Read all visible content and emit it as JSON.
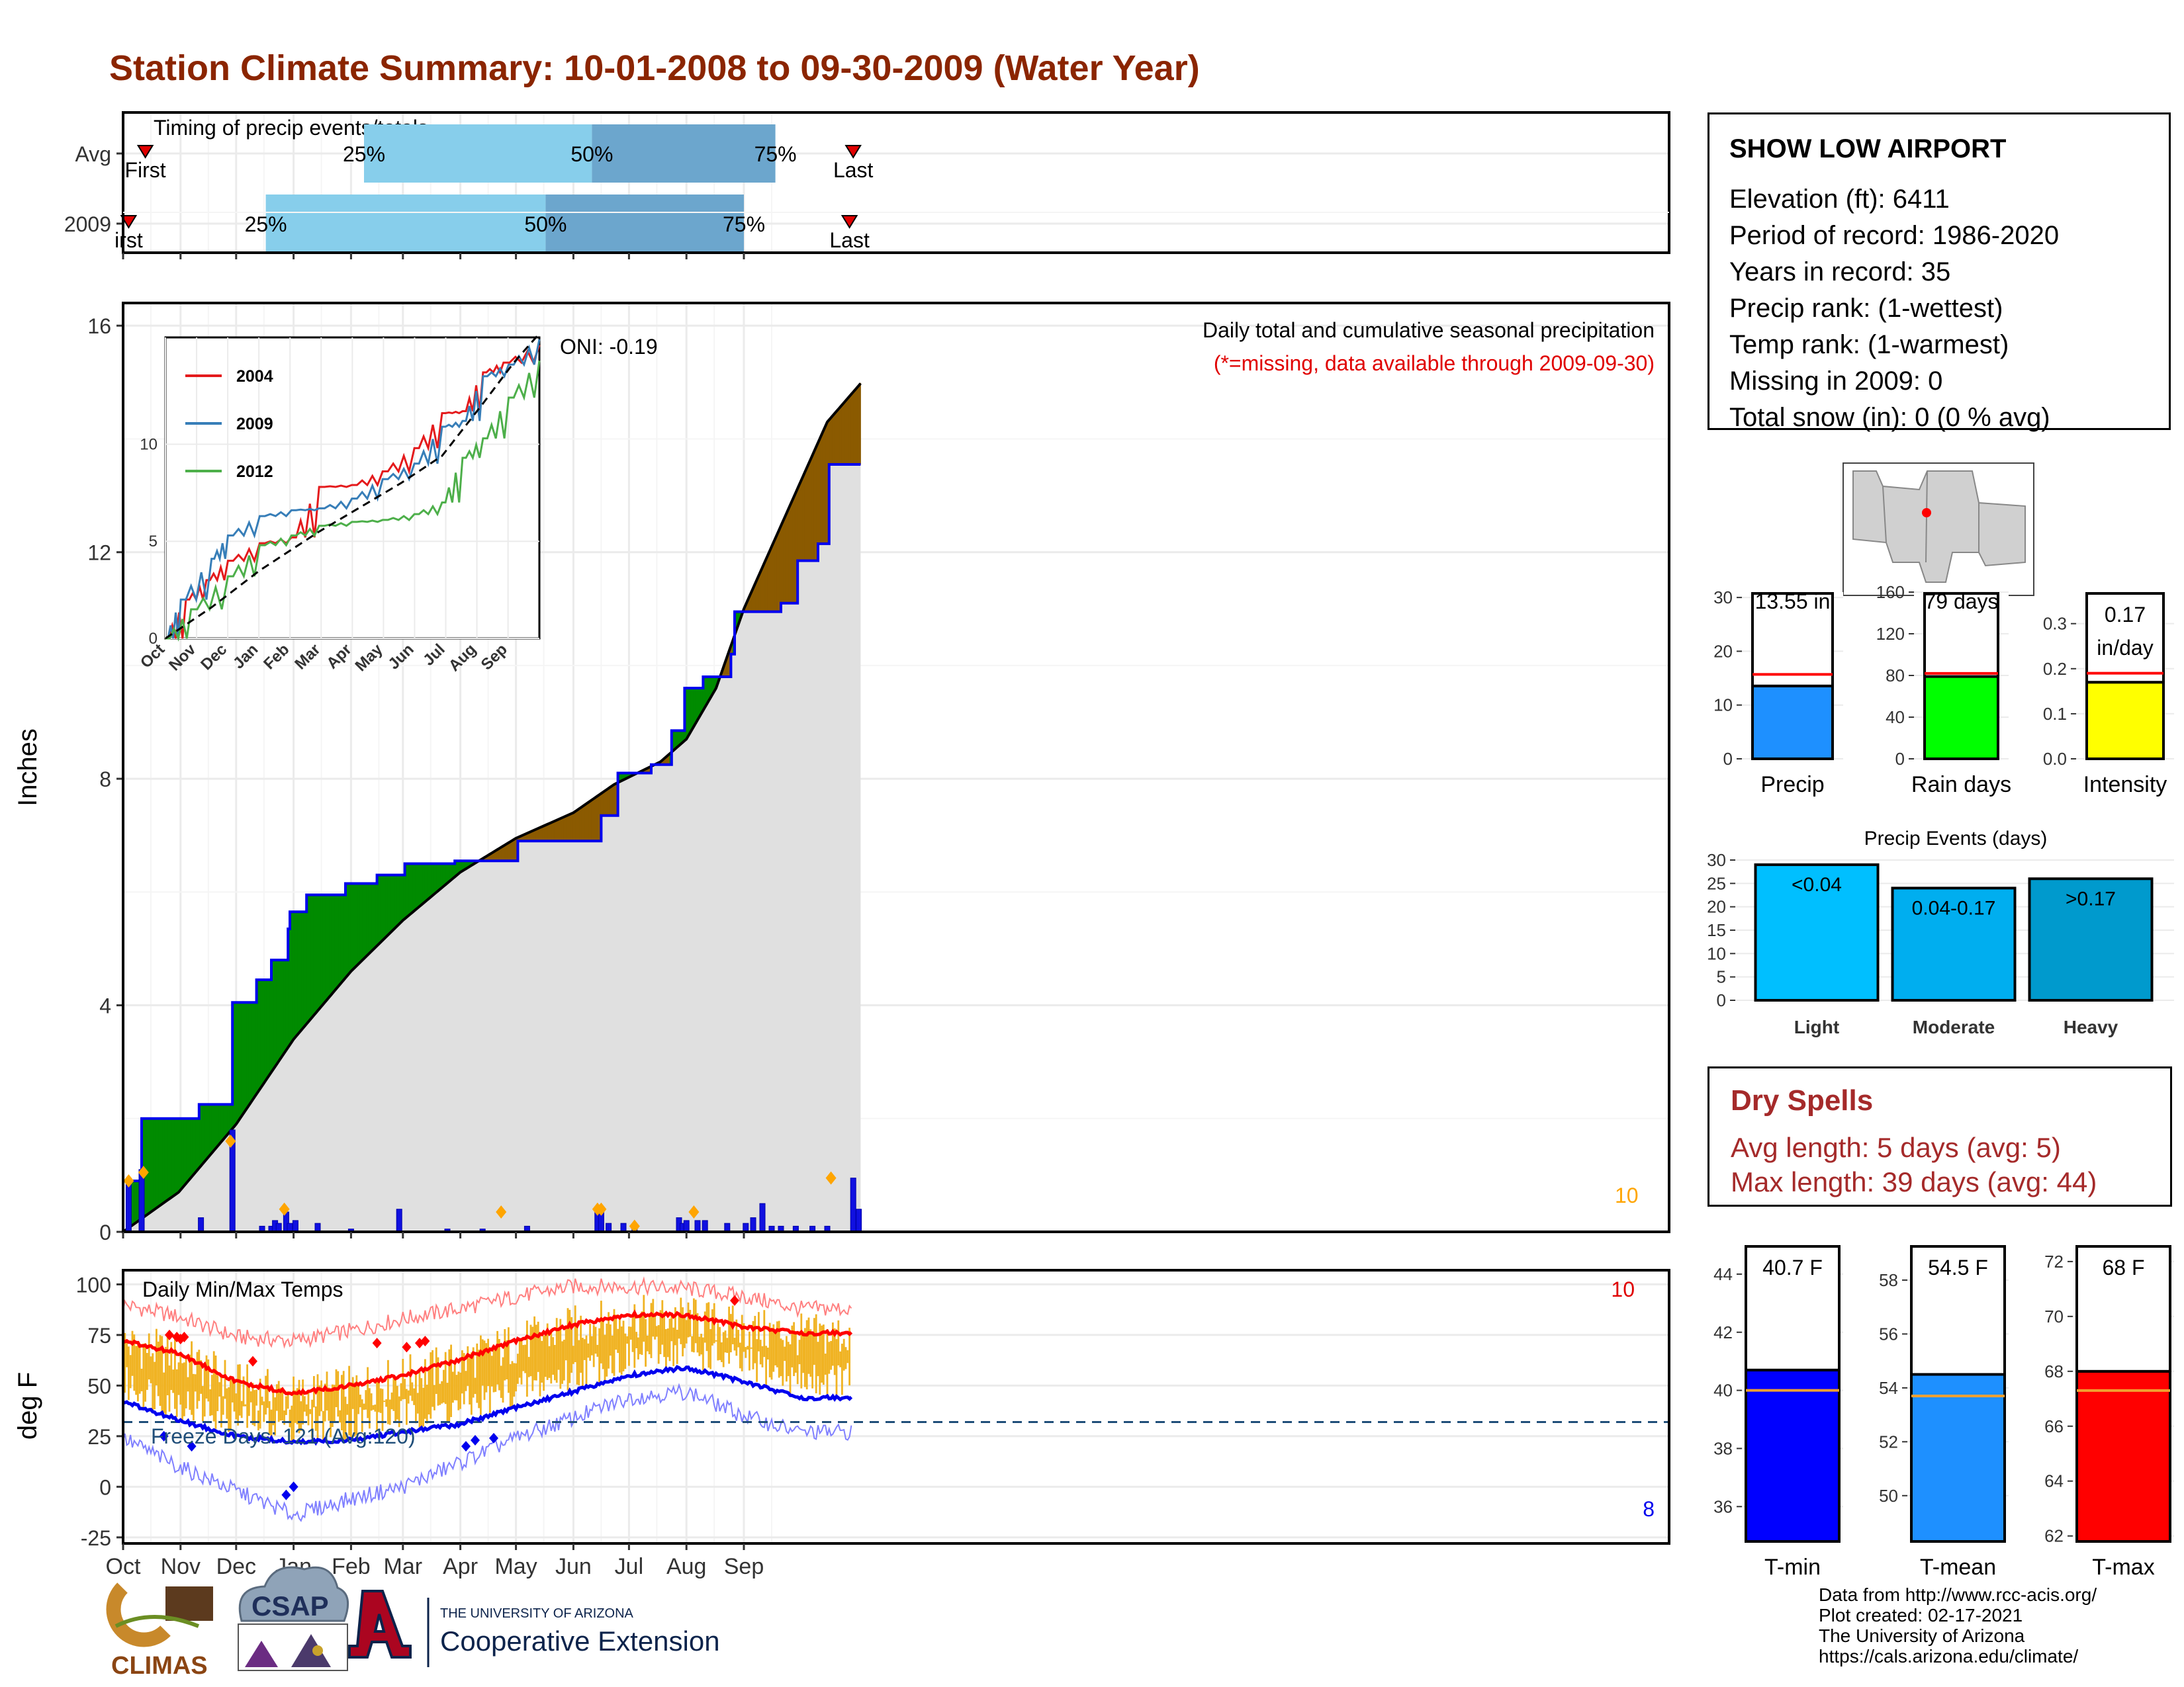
{
  "title": "Station Climate Summary: 10-01-2008 to 09-30-2009 (Water Year)",
  "station": {
    "name": "SHOW LOW AIRPORT",
    "rows": [
      "Elevation (ft): 6411",
      "Period of record: 1986-2020",
      "Years in record: 35",
      "Precip rank:  (1-wettest)",
      "Temp rank:  (1-warmest)",
      "Missing in 2009: 0",
      "Total snow (in): 0 (0 % avg)"
    ]
  },
  "dry_spells": {
    "title": "Dry Spells",
    "avg_line": "Avg length: 5 days (avg: 5)",
    "max_line": "Max length: 39 days (avg: 44)"
  },
  "credits": [
    "Data from http://www.rcc-acis.org/",
    "Plot created: 02-17-2021",
    "The University of Arizona",
    "https://cals.arizona.edu/climate/"
  ],
  "logos": {
    "climas": "CLIMAS",
    "csap": "CSAP",
    "ua_line1": "THE UNIVERSITY OF ARIZONA",
    "ua_line2": "Cooperative Extension"
  },
  "colors": {
    "title": "#8B2500",
    "light_blue": "#87CEEB",
    "mid_blue": "#6CA6CD",
    "green": "#008B00",
    "brown": "#8B5A00",
    "grey": "#E0E0E0",
    "avg_line": "#FF0000",
    "precip_bar": "#1E90FF",
    "rain_bar": "#00FF00",
    "intensity_bar": "#FFFF00",
    "tmin_bar": "#0000FF",
    "tmean_bar": "#1E90FF",
    "tmax_bar": "#FF0000",
    "temp_bars": "#F0B323"
  },
  "chart_data": [
    {
      "id": "timing",
      "type": "bar",
      "title": "Timing of precip events/totals",
      "categories": [
        "Avg",
        "2009"
      ],
      "month_ticks_day": [
        0,
        31,
        61,
        92,
        123,
        151,
        182,
        212,
        243,
        273,
        304,
        335
      ],
      "rows": [
        {
          "label": "Avg",
          "first_day": 12,
          "p25_day": 130,
          "p50_day": 253,
          "p75_day": 352,
          "last_day": 394,
          "first_label": "First",
          "last_label": "Last"
        },
        {
          "label": "2009",
          "first_day": 3,
          "p25_day": 77,
          "p50_day": 228,
          "p75_day": 335,
          "last_day": 392,
          "first_label": "irst",
          "last_label": "Last"
        }
      ],
      "pct_labels": [
        "25%",
        "50%",
        "75%"
      ]
    },
    {
      "id": "cumulative",
      "type": "area",
      "title": "Daily total and cumulative seasonal precipitation",
      "subtitle": "(*=missing, data available through 2009-09-30)",
      "annotation": "ONI: -0.19",
      "count_label": "10",
      "ylabel": "Inches",
      "ylim": [
        0,
        16.4
      ],
      "yticks": [
        0,
        4,
        8,
        12,
        16
      ],
      "cum_2009": [
        [
          0,
          0
        ],
        [
          3,
          0.9
        ],
        [
          9,
          0.9
        ],
        [
          10,
          2.0
        ],
        [
          40,
          2.0
        ],
        [
          41,
          2.25
        ],
        [
          58,
          2.25
        ],
        [
          59,
          4.05
        ],
        [
          71,
          4.05
        ],
        [
          72,
          4.45
        ],
        [
          79,
          4.45
        ],
        [
          80,
          4.8
        ],
        [
          87,
          4.8
        ],
        [
          89,
          5.35
        ],
        [
          90,
          5.65
        ],
        [
          98,
          5.65
        ],
        [
          99,
          5.95
        ],
        [
          117,
          5.95
        ],
        [
          120,
          6.15
        ],
        [
          135,
          6.15
        ],
        [
          137,
          6.3
        ],
        [
          151,
          6.3
        ],
        [
          152,
          6.5
        ],
        [
          178,
          6.5
        ],
        [
          179,
          6.55
        ],
        [
          212,
          6.55
        ],
        [
          213,
          6.9
        ],
        [
          257,
          6.9
        ],
        [
          258,
          7.35
        ],
        [
          263,
          7.35
        ],
        [
          267,
          8.1
        ],
        [
          284,
          8.1
        ],
        [
          285,
          8.25
        ],
        [
          295,
          8.25
        ],
        [
          296,
          8.85
        ],
        [
          302,
          8.85
        ],
        [
          303,
          9.6
        ],
        [
          312,
          9.6
        ],
        [
          313,
          9.8
        ],
        [
          327,
          9.8
        ],
        [
          328,
          10.2
        ],
        [
          330,
          10.95
        ],
        [
          340,
          10.95
        ],
        [
          355,
          11.1
        ],
        [
          362,
          11.1
        ],
        [
          364,
          11.85
        ],
        [
          373,
          11.85
        ],
        [
          375,
          12.15
        ],
        [
          378,
          12.15
        ],
        [
          381,
          13.55
        ],
        [
          398,
          13.55
        ]
      ],
      "cum_avg": [
        [
          0,
          0
        ],
        [
          30,
          0.7
        ],
        [
          61,
          1.9
        ],
        [
          92,
          3.4
        ],
        [
          123,
          4.6
        ],
        [
          151,
          5.5
        ],
        [
          182,
          6.35
        ],
        [
          212,
          6.95
        ],
        [
          243,
          7.4
        ],
        [
          265,
          7.9
        ],
        [
          290,
          8.3
        ],
        [
          304,
          8.7
        ],
        [
          320,
          9.6
        ],
        [
          335,
          11.0
        ],
        [
          350,
          12.1
        ],
        [
          365,
          13.2
        ],
        [
          380,
          14.3
        ],
        [
          398,
          14.98
        ]
      ],
      "daily": [
        [
          3,
          0.9
        ],
        [
          10,
          1.1
        ],
        [
          42,
          0.25
        ],
        [
          59,
          1.8
        ],
        [
          75,
          0.1
        ],
        [
          80,
          0.1
        ],
        [
          82,
          0.2
        ],
        [
          84,
          0.15
        ],
        [
          88,
          0.35
        ],
        [
          90,
          0.15
        ],
        [
          93,
          0.2
        ],
        [
          105,
          0.15
        ],
        [
          123,
          0.05
        ],
        [
          149,
          0.4
        ],
        [
          175,
          0.05
        ],
        [
          194,
          0.05
        ],
        [
          218,
          0.1
        ],
        [
          256,
          0.4
        ],
        [
          258,
          0.4
        ],
        [
          262,
          0.15
        ],
        [
          270,
          0.15
        ],
        [
          276,
          0.05
        ],
        [
          300,
          0.25
        ],
        [
          302,
          0.15
        ],
        [
          304,
          0.2
        ],
        [
          310,
          0.2
        ],
        [
          314,
          0.2
        ],
        [
          326,
          0.15
        ],
        [
          336,
          0.15
        ],
        [
          340,
          0.25
        ],
        [
          345,
          0.5
        ],
        [
          350,
          0.1
        ],
        [
          355,
          0.1
        ],
        [
          363,
          0.1
        ],
        [
          372,
          0.1
        ],
        [
          380,
          0.1
        ],
        [
          394,
          0.95
        ],
        [
          397,
          0.4
        ]
      ],
      "daily_markers": [
        [
          3,
          0.9
        ],
        [
          11,
          1.05
        ],
        [
          58,
          1.6
        ],
        [
          87,
          0.4
        ],
        [
          204,
          0.35
        ],
        [
          256,
          0.4
        ],
        [
          258,
          0.4
        ],
        [
          308,
          0.35
        ],
        [
          276,
          0.1
        ],
        [
          382,
          0.95
        ]
      ]
    },
    {
      "id": "inset",
      "type": "line",
      "yticks": [
        0,
        5,
        10
      ],
      "ylim": [
        0,
        15.5
      ],
      "xticks": [
        "Oct",
        "Nov",
        "Dec",
        "Jan",
        "Feb",
        "Mar",
        "Apr",
        "May",
        "Jun",
        "Jul",
        "Aug",
        "Sep"
      ],
      "series": [
        {
          "name": "2004",
          "color": "#E41A1C",
          "values": [
            [
              0,
              0
            ],
            [
              20,
              2.0
            ],
            [
              40,
              3.0
            ],
            [
              61,
              4.0
            ],
            [
              92,
              4.9
            ],
            [
              123,
              5.2
            ],
            [
              150,
              7.8
            ],
            [
              182,
              7.9
            ],
            [
              212,
              8.6
            ],
            [
              243,
              9.8
            ],
            [
              270,
              11.6
            ],
            [
              290,
              11.7
            ],
            [
              310,
              13.7
            ],
            [
              330,
              14.2
            ],
            [
              365,
              15.1
            ]
          ]
        },
        {
          "name": "2009",
          "color": "#377EB8",
          "values": [
            [
              0,
              0
            ],
            [
              15,
              2.0
            ],
            [
              45,
              4.1
            ],
            [
              61,
              5.3
            ],
            [
              92,
              6.3
            ],
            [
              123,
              6.6
            ],
            [
              150,
              6.7
            ],
            [
              182,
              7.2
            ],
            [
              212,
              8.2
            ],
            [
              243,
              9.0
            ],
            [
              270,
              10.9
            ],
            [
              290,
              11.2
            ],
            [
              310,
              13.5
            ],
            [
              335,
              14.1
            ],
            [
              365,
              15.4
            ]
          ]
        },
        {
          "name": "2012",
          "color": "#4DAF4A",
          "values": [
            [
              0,
              0
            ],
            [
              25,
              1.5
            ],
            [
              61,
              3.2
            ],
            [
              92,
              4.8
            ],
            [
              123,
              5.3
            ],
            [
              150,
              5.8
            ],
            [
              182,
              6.0
            ],
            [
              212,
              6.1
            ],
            [
              243,
              6.4
            ],
            [
              270,
              7.0
            ],
            [
              290,
              9.3
            ],
            [
              310,
              10.3
            ],
            [
              335,
              12.4
            ],
            [
              365,
              14.3
            ]
          ]
        }
      ],
      "avg_dashed": [
        [
          0,
          0
        ],
        [
          45,
          1.6
        ],
        [
          92,
          3.5
        ],
        [
          150,
          5.5
        ],
        [
          182,
          6.5
        ],
        [
          230,
          8.0
        ],
        [
          270,
          9.4
        ],
        [
          310,
          12.1
        ],
        [
          340,
          14.2
        ],
        [
          365,
          15.7
        ]
      ]
    },
    {
      "id": "temps",
      "type": "line",
      "title": "Daily Min/Max Temps",
      "freeze_label": "Freeze Days: 121 (Avg:120)",
      "ylabel": "deg F",
      "ylim": [
        -28,
        107
      ],
      "yticks": [
        -25,
        0,
        25,
        50,
        75,
        100
      ],
      "freeze_line": 32,
      "count_high": "10",
      "count_low": "8",
      "xticks": [
        "Oct",
        "Nov",
        "Dec",
        "Jan",
        "Feb",
        "Mar",
        "Apr",
        "May",
        "Jun",
        "Jul",
        "Aug",
        "Sep"
      ],
      "avg_max": [
        [
          0,
          72
        ],
        [
          30,
          66
        ],
        [
          61,
          52
        ],
        [
          92,
          46
        ],
        [
          123,
          50
        ],
        [
          151,
          55
        ],
        [
          182,
          63
        ],
        [
          212,
          72
        ],
        [
          243,
          80
        ],
        [
          273,
          85
        ],
        [
          304,
          85
        ],
        [
          335,
          79
        ],
        [
          365,
          76
        ]
      ],
      "avg_min": [
        [
          0,
          42
        ],
        [
          30,
          33
        ],
        [
          61,
          25
        ],
        [
          92,
          22
        ],
        [
          123,
          23
        ],
        [
          151,
          27
        ],
        [
          182,
          31
        ],
        [
          212,
          39
        ],
        [
          243,
          47
        ],
        [
          273,
          55
        ],
        [
          304,
          59
        ],
        [
          335,
          52
        ],
        [
          365,
          44
        ]
      ],
      "rec_max": [
        [
          0,
          90
        ],
        [
          30,
          84
        ],
        [
          61,
          74
        ],
        [
          92,
          72
        ],
        [
          123,
          77
        ],
        [
          151,
          83
        ],
        [
          182,
          88
        ],
        [
          212,
          94
        ],
        [
          243,
          99
        ],
        [
          273,
          99
        ],
        [
          304,
          98
        ],
        [
          335,
          94
        ],
        [
          365,
          88
        ]
      ],
      "rec_min": [
        [
          0,
          24
        ],
        [
          30,
          10
        ],
        [
          61,
          -2
        ],
        [
          92,
          -14
        ],
        [
          123,
          -6
        ],
        [
          151,
          0
        ],
        [
          182,
          12
        ],
        [
          212,
          24
        ],
        [
          243,
          34
        ],
        [
          273,
          44
        ],
        [
          304,
          47
        ],
        [
          335,
          35
        ],
        [
          365,
          27
        ]
      ],
      "max_records": [
        [
          25,
          75
        ],
        [
          29,
          74
        ],
        [
          31,
          73
        ],
        [
          33,
          74
        ],
        [
          70,
          62
        ],
        [
          137,
          71
        ],
        [
          153,
          69
        ],
        [
          160,
          71
        ],
        [
          163,
          72
        ],
        [
          330,
          92
        ]
      ],
      "min_records": [
        [
          22,
          25
        ],
        [
          37,
          20
        ],
        [
          88,
          -4
        ],
        [
          185,
          20
        ],
        [
          190,
          23
        ],
        [
          200,
          24
        ],
        [
          92,
          0
        ]
      ]
    },
    {
      "id": "precip_totals",
      "type": "bar",
      "categories": [
        "Precip",
        "Rain days",
        "Intensity"
      ],
      "values": [
        13.55,
        79,
        0.17
      ],
      "averages": [
        15.7,
        82,
        0.19
      ],
      "value_labels": [
        "13.55 in",
        "79 days",
        "0.17 in/day"
      ],
      "ylims": [
        [
          0,
          31
        ],
        [
          0,
          160
        ],
        [
          0,
          0.37
        ]
      ],
      "yticks": [
        [
          0,
          10,
          20,
          30
        ],
        [
          0,
          40,
          80,
          120,
          160
        ],
        [
          0.0,
          0.1,
          0.2,
          0.3
        ]
      ]
    },
    {
      "id": "precip_events",
      "type": "bar",
      "title": "Precip Events (days)",
      "categories": [
        "Light",
        "Moderate",
        "Heavy"
      ],
      "bar_labels": [
        "<0.04",
        "0.04-0.17",
        ">0.17"
      ],
      "values": [
        29,
        24,
        26
      ],
      "ylim": [
        0,
        30
      ],
      "yticks": [
        0,
        5,
        10,
        15,
        20,
        25,
        30
      ]
    },
    {
      "id": "temp_avgs",
      "type": "bar",
      "categories": [
        "T-min",
        "T-mean",
        "T-max"
      ],
      "values": [
        40.7,
        54.5,
        68
      ],
      "averages": [
        40.0,
        53.7,
        67.3
      ],
      "value_labels": [
        "40.7 F",
        "54.5 F",
        "68 F"
      ],
      "ylims": [
        [
          34.8,
          45.0
        ],
        [
          48.3,
          59.3
        ],
        [
          61.8,
          72.6
        ]
      ],
      "yticks": [
        [
          36,
          38,
          40,
          42,
          44
        ],
        [
          50,
          52,
          54,
          56,
          58
        ],
        [
          62,
          64,
          66,
          68,
          70,
          72
        ]
      ]
    }
  ]
}
